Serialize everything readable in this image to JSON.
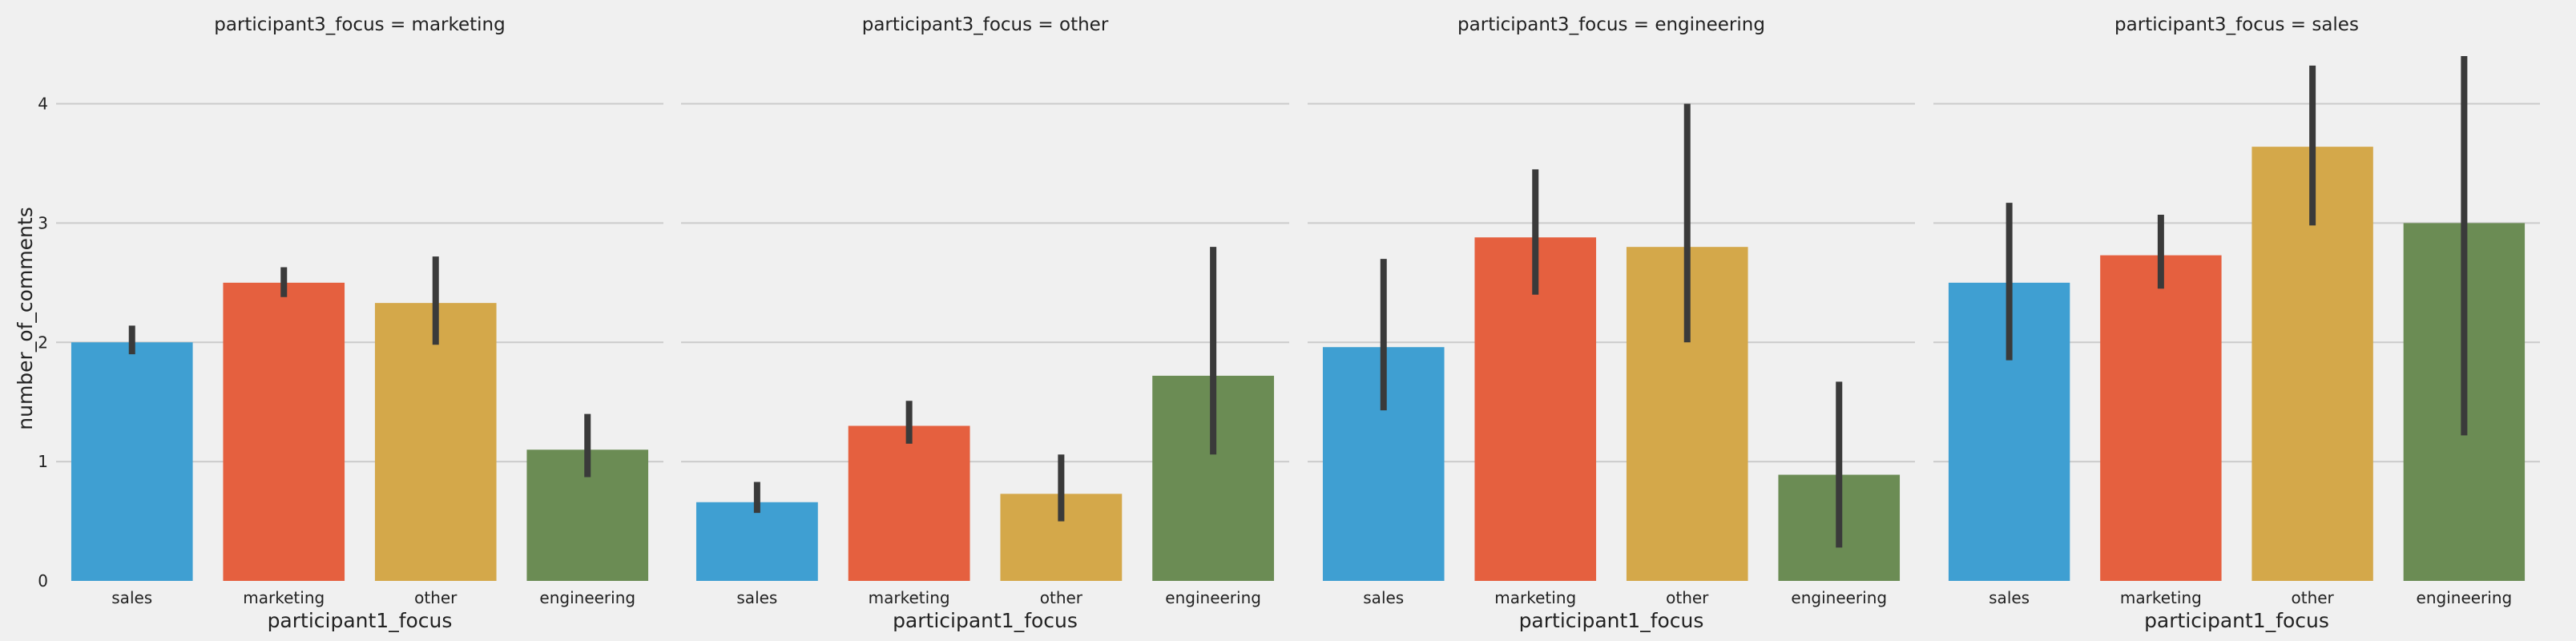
{
  "chart_data": {
    "type": "bar",
    "ylabel": "number_of_comments",
    "xlabel": "participant1_focus",
    "ylim": [
      0,
      4.4
    ],
    "yticks": [
      0,
      1,
      2,
      3,
      4
    ],
    "grid": true,
    "categories": [
      "sales",
      "marketing",
      "other",
      "engineering"
    ],
    "colors": [
      "#3f9fd2",
      "#e5603f",
      "#d4a84a",
      "#6b8c54"
    ],
    "facets": [
      {
        "title": "participant3_focus = marketing",
        "values": [
          2.0,
          2.5,
          2.33,
          1.1
        ],
        "ci_low": [
          1.9,
          2.38,
          1.98,
          0.87
        ],
        "ci_high": [
          2.14,
          2.63,
          2.72,
          1.4
        ]
      },
      {
        "title": "participant3_focus = other",
        "values": [
          0.66,
          1.3,
          0.73,
          1.72
        ],
        "ci_low": [
          0.57,
          1.15,
          0.5,
          1.06
        ],
        "ci_high": [
          0.83,
          1.51,
          1.06,
          2.8
        ]
      },
      {
        "title": "participant3_focus = engineering",
        "values": [
          1.96,
          2.88,
          2.8,
          0.89
        ],
        "ci_low": [
          1.43,
          2.4,
          2.0,
          0.28
        ],
        "ci_high": [
          2.7,
          3.45,
          4.0,
          1.67
        ]
      },
      {
        "title": "participant3_focus = sales",
        "values": [
          2.5,
          2.73,
          3.64,
          3.0
        ],
        "ci_low": [
          1.85,
          2.45,
          2.98,
          1.22
        ],
        "ci_high": [
          3.17,
          3.07,
          4.32,
          4.4
        ]
      }
    ]
  }
}
